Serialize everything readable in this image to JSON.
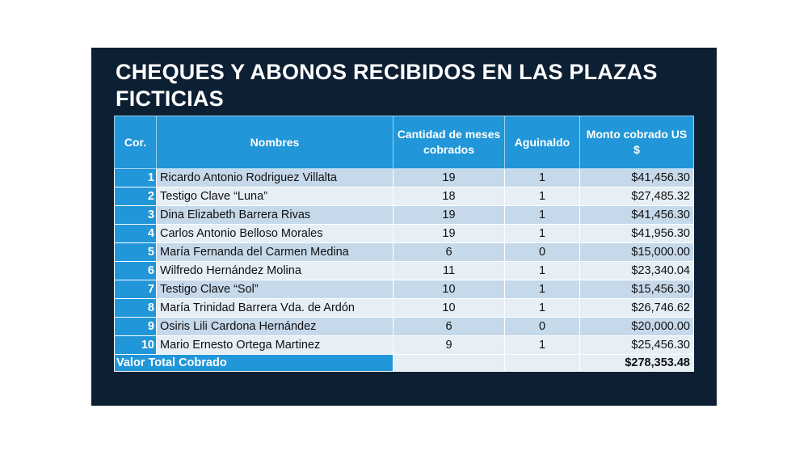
{
  "title": "CHEQUES Y ABONOS RECIBIDOS EN LAS PLAZAS FICTICIAS",
  "headers": {
    "cor": "Cor.",
    "nombres": "Nombres",
    "cantidad": "Cantidad de meses cobrados",
    "aguinaldo": "Aguinaldo",
    "monto": "Monto cobrado US $"
  },
  "rows": [
    {
      "cor": "1",
      "nombre": "Ricardo Antonio Rodriguez Villalta",
      "meses": "19",
      "aguinaldo": "1",
      "monto": "$41,456.30"
    },
    {
      "cor": "2",
      "nombre": "Testigo Clave “Luna”",
      "meses": "18",
      "aguinaldo": "1",
      "monto": "$27,485.32"
    },
    {
      "cor": "3",
      "nombre": "Dina Elizabeth Barrera Rivas",
      "meses": "19",
      "aguinaldo": "1",
      "monto": "$41,456.30"
    },
    {
      "cor": "4",
      "nombre": "Carlos Antonio Belloso Morales",
      "meses": "19",
      "aguinaldo": "1",
      "monto": "$41,956.30"
    },
    {
      "cor": "5",
      "nombre": "María Fernanda del Carmen Medina",
      "meses": "6",
      "aguinaldo": "0",
      "monto": "$15,000.00"
    },
    {
      "cor": "6",
      "nombre": "Wilfredo Hernández Molina",
      "meses": "11",
      "aguinaldo": "1",
      "monto": "$23,340.04"
    },
    {
      "cor": "7",
      "nombre": "Testigo Clave “Sol”",
      "meses": "10",
      "aguinaldo": "1",
      "monto": "$15,456.30"
    },
    {
      "cor": "8",
      "nombre": "María Trinidad Barrera Vda. de Ardón",
      "meses": "10",
      "aguinaldo": "1",
      "monto": "$26,746.62"
    },
    {
      "cor": "9",
      "nombre": "Osiris Lili Cardona Hernández",
      "meses": "6",
      "aguinaldo": "0",
      "monto": "$20,000.00"
    },
    {
      "cor": "10",
      "nombre": "Mario Ernesto Ortega Martinez",
      "meses": "9",
      "aguinaldo": "1",
      "monto": "$25,456.30"
    }
  ],
  "total": {
    "label": "Valor Total Cobrado",
    "value": "$278,353.48"
  },
  "colors": {
    "background": "#0d1f33",
    "header": "#2196d8",
    "row_odd": "#c6d9ea",
    "row_even": "#e6eef6"
  }
}
